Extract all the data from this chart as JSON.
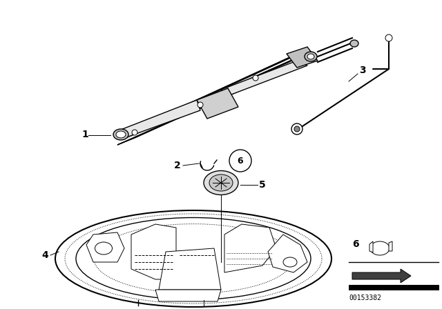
{
  "background_color": "#ffffff",
  "line_color": "#000000",
  "diagram_id": "00153382",
  "figsize": [
    6.4,
    4.48
  ],
  "dpi": 100
}
